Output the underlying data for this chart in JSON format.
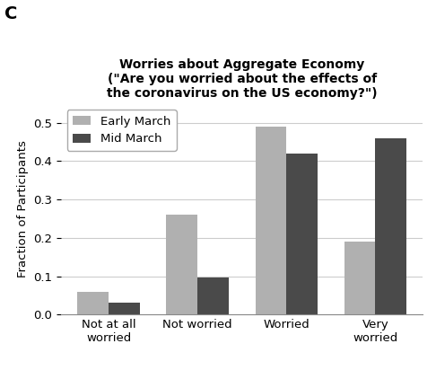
{
  "title_line1": "Worries about Aggregate Economy",
  "title_line2": "(\"Are you worried about the effects of",
  "title_line3": "the coronavirus on the US economy?\")",
  "panel_label": "C",
  "categories": [
    "Not at all\nworried",
    "Not worried",
    "Worried",
    "Very\nworried"
  ],
  "early_march": [
    0.06,
    0.26,
    0.49,
    0.19
  ],
  "mid_march": [
    0.03,
    0.097,
    0.42,
    0.46
  ],
  "early_color": "#b0b0b0",
  "mid_color": "#4a4a4a",
  "ylabel": "Fraction of Participants",
  "ylim": [
    0,
    0.55
  ],
  "yticks": [
    0.0,
    0.1,
    0.2,
    0.3,
    0.4,
    0.5
  ],
  "legend_labels": [
    "Early March",
    "Mid March"
  ],
  "bar_width": 0.35,
  "background_color": "#ffffff",
  "grid_color": "#cccccc"
}
